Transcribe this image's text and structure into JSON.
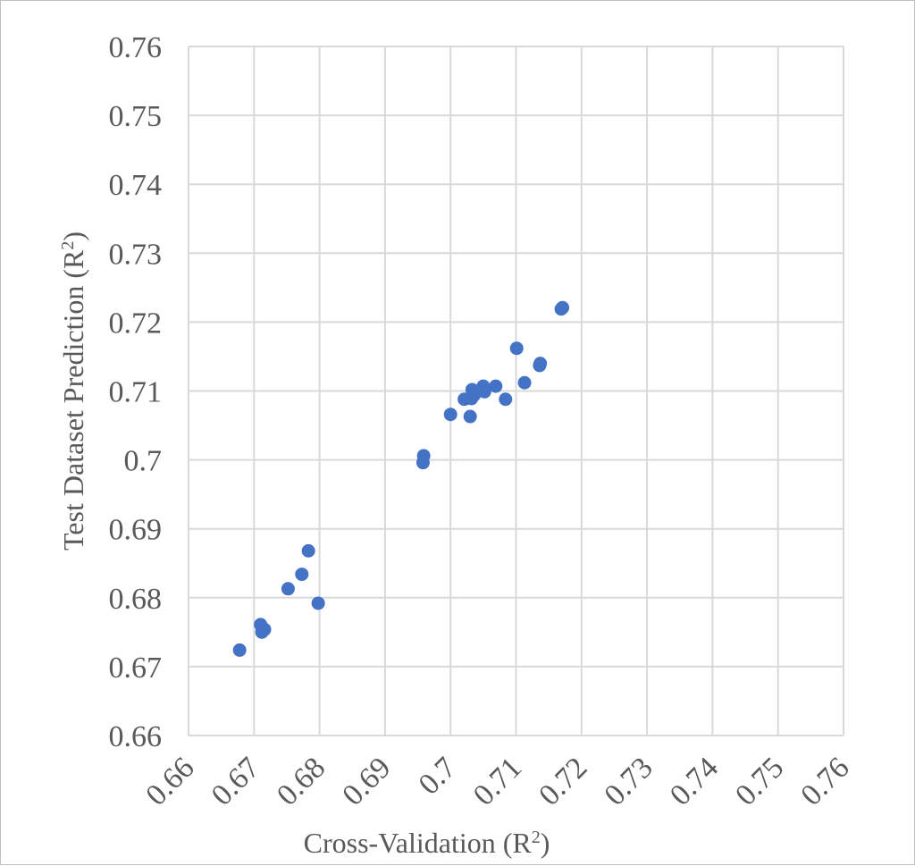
{
  "chart_data": {
    "type": "scatter",
    "title": "",
    "xlabel": "Cross-Validation  (R",
    "xlabel_sup": "2",
    "xlabel_end": ")",
    "ylabel": "Test Dataset Prediction (R",
    "ylabel_sup": "2",
    "ylabel_end": ")",
    "xlim": [
      0.66,
      0.76
    ],
    "ylim": [
      0.66,
      0.76
    ],
    "x_ticks": [
      0.66,
      0.67,
      0.68,
      0.69,
      0.7,
      0.71,
      0.72,
      0.73,
      0.74,
      0.75,
      0.76
    ],
    "y_ticks": [
      0.66,
      0.67,
      0.68,
      0.69,
      0.7,
      0.71,
      0.72,
      0.73,
      0.74,
      0.75,
      0.76
    ],
    "x_tick_labels": [
      "0.66",
      "0.67",
      "0.68",
      "0.69",
      "0.7",
      "0.71",
      "0.72",
      "0.73",
      "0.74",
      "0.75",
      "0.76"
    ],
    "y_tick_labels": [
      "0.66",
      "0.67",
      "0.68",
      "0.69",
      "0.7",
      "0.71",
      "0.72",
      "0.73",
      "0.74",
      "0.75",
      "0.76"
    ],
    "grid": true,
    "legend": "none",
    "marker_color": "#4472C4",
    "series": [
      {
        "points": [
          [
            0.6678,
            0.6724
          ],
          [
            0.671,
            0.6761
          ],
          [
            0.6712,
            0.675
          ],
          [
            0.6716,
            0.6754
          ],
          [
            0.6752,
            0.6813
          ],
          [
            0.6773,
            0.6834
          ],
          [
            0.6783,
            0.6868
          ],
          [
            0.6798,
            0.6792
          ],
          [
            0.6958,
            0.6996
          ],
          [
            0.6959,
            0.7006
          ],
          [
            0.7,
            0.7066
          ],
          [
            0.7021,
            0.7088
          ],
          [
            0.703,
            0.7063
          ],
          [
            0.7032,
            0.7089
          ],
          [
            0.7033,
            0.7102
          ],
          [
            0.7036,
            0.7094
          ],
          [
            0.705,
            0.7107
          ],
          [
            0.7052,
            0.7099
          ],
          [
            0.7069,
            0.7107
          ],
          [
            0.7084,
            0.7088
          ],
          [
            0.7101,
            0.7162
          ],
          [
            0.7113,
            0.7112
          ],
          [
            0.7136,
            0.7137
          ],
          [
            0.7137,
            0.714
          ],
          [
            0.7169,
            0.7219
          ],
          [
            0.7171,
            0.7221
          ]
        ]
      }
    ]
  }
}
